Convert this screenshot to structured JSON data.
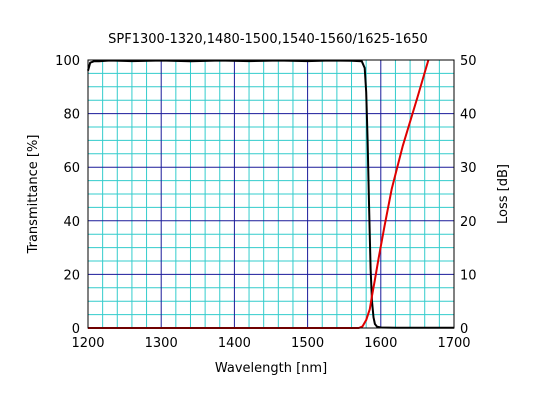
{
  "chart_data": {
    "type": "line",
    "title": "SPF1300-1320,1480-1500,1540-1560/1625-1650",
    "xlabel": "Wavelength [nm]",
    "ylabel": "Transmittance [%]",
    "y2label": "Loss [dB]",
    "xlim": [
      1200,
      1700
    ],
    "ylim": [
      0,
      100
    ],
    "y2lim": [
      0,
      50
    ],
    "xticks": [
      "1200",
      "1300",
      "1400",
      "1500",
      "1600",
      "1700"
    ],
    "yticks": [
      "0",
      "20",
      "40",
      "60",
      "80",
      "100"
    ],
    "y2ticks": [
      "0",
      "10",
      "20",
      "30",
      "40",
      "50"
    ],
    "grid": true,
    "colors": {
      "major_grid": "#1a1a99",
      "minor_grid": "#33cccc",
      "transmittance": "#000000",
      "loss": "#e00000"
    },
    "series": [
      {
        "axis": "left",
        "color": "#000000",
        "x": [
          1200,
          1203,
          1208,
          1215,
          1230,
          1260,
          1300,
          1340,
          1380,
          1420,
          1460,
          1500,
          1530,
          1560,
          1574,
          1578,
          1580,
          1582,
          1584,
          1586,
          1588,
          1590,
          1592,
          1595,
          1600,
          1620,
          1650,
          1700
        ],
        "values": [
          96,
          99,
          99.5,
          99.5,
          99.8,
          99.6,
          99.8,
          99.5,
          99.8,
          99.6,
          99.8,
          99.6,
          99.8,
          99.7,
          99.5,
          97,
          88,
          70,
          45,
          22,
          10,
          4,
          1.5,
          0.5,
          0.2,
          0.1,
          0.1,
          0.1
        ]
      },
      {
        "axis": "right",
        "color": "#e00000",
        "x": [
          1200,
          1570,
          1575,
          1580,
          1585,
          1588,
          1592,
          1597,
          1605,
          1615,
          1630,
          1650,
          1665
        ],
        "values": [
          0,
          0,
          0.3,
          1.5,
          3.5,
          6,
          9,
          13,
          19,
          26,
          34,
          43,
          50
        ]
      }
    ]
  }
}
